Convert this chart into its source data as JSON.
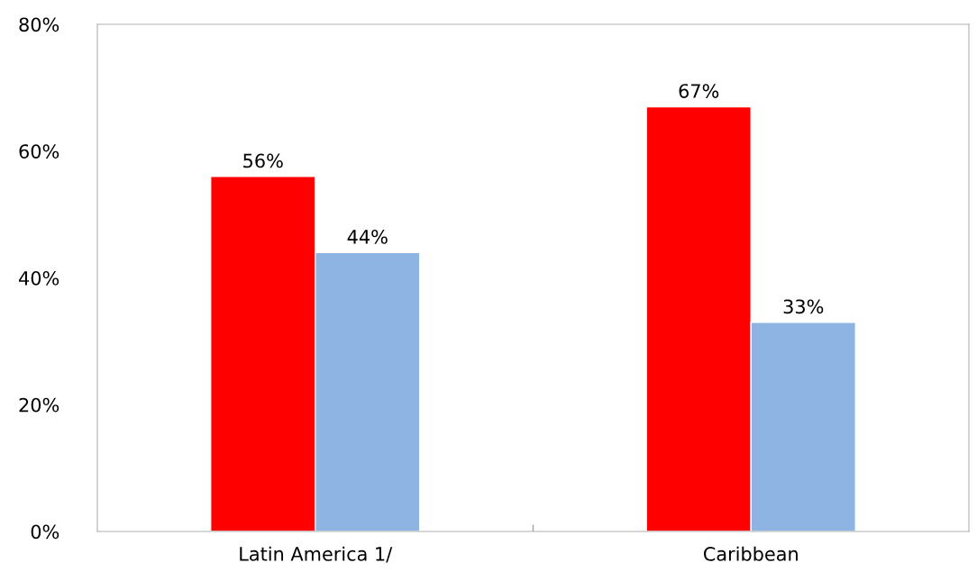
{
  "chart_data": {
    "type": "bar",
    "categories": [
      "Latin America 1/",
      "Caribbean"
    ],
    "series": [
      {
        "color": "#ff0000",
        "values": [
          56,
          67
        ],
        "value_labels": [
          "56%",
          "67%"
        ]
      },
      {
        "color": "#8eb4e3",
        "values": [
          44,
          33
        ],
        "value_labels": [
          "44%",
          "33%"
        ]
      }
    ],
    "ylim": [
      0,
      80
    ],
    "yticks": [
      {
        "value": 0,
        "label": "0%"
      },
      {
        "value": 20,
        "label": "20%"
      },
      {
        "value": 40,
        "label": "40%"
      },
      {
        "value": 60,
        "label": "60%"
      },
      {
        "value": 80,
        "label": "80%"
      }
    ],
    "grid": false,
    "legend": false
  }
}
